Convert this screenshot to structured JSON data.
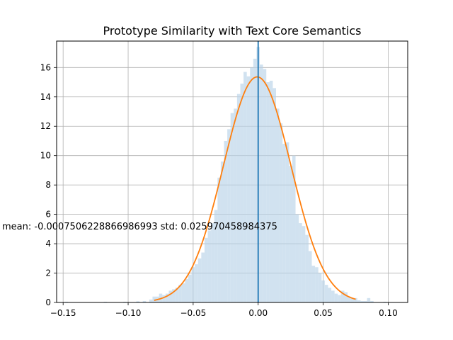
{
  "chart_data": {
    "type": "bar",
    "title": "Prototype Similarity with Text Core Semantics",
    "xlabel": "",
    "ylabel": "",
    "xlim": [
      -0.155,
      0.115
    ],
    "ylim": [
      0,
      17.8
    ],
    "grid": true,
    "x_ticks": [
      -0.15,
      -0.1,
      -0.05,
      0.0,
      0.05,
      0.1
    ],
    "x_tick_labels": [
      "−0.15",
      "−0.10",
      "−0.05",
      "0.00",
      "0.05",
      "0.10"
    ],
    "y_ticks": [
      0,
      2,
      4,
      6,
      8,
      10,
      12,
      14,
      16
    ],
    "y_tick_labels": [
      "0",
      "2",
      "4",
      "6",
      "8",
      "10",
      "12",
      "14",
      "16"
    ],
    "bar_color": "#b9d3e8",
    "fit_color": "#ff7f0e",
    "vline_color": "#1f77b4",
    "mean_line_x": 0.0,
    "fit_curve": {
      "mean": -0.00075,
      "std": 0.02597,
      "x_range": [
        -0.08,
        0.075
      ]
    },
    "annotation": "mean: -0.0007506228866986993 std: 0.025970458984375",
    "annotation_position": {
      "x": -0.101,
      "y": 5.15
    },
    "histogram": {
      "bin_width": 0.0025,
      "bins": [
        {
          "x": -0.1475,
          "y": 0.05
        },
        {
          "x": -0.1175,
          "y": 0.05
        },
        {
          "x": -0.1025,
          "y": 0.05
        },
        {
          "x": -0.0925,
          "y": 0.08
        },
        {
          "x": -0.0875,
          "y": 0.1
        },
        {
          "x": -0.0825,
          "y": 0.2
        },
        {
          "x": -0.08,
          "y": 0.4
        },
        {
          "x": -0.0775,
          "y": 0.4
        },
        {
          "x": -0.075,
          "y": 0.6
        },
        {
          "x": -0.0725,
          "y": 0.5
        },
        {
          "x": -0.07,
          "y": 0.6
        },
        {
          "x": -0.0675,
          "y": 0.8
        },
        {
          "x": -0.065,
          "y": 0.9
        },
        {
          "x": -0.0625,
          "y": 1.0
        },
        {
          "x": -0.06,
          "y": 1.2
        },
        {
          "x": -0.0575,
          "y": 1.3
        },
        {
          "x": -0.055,
          "y": 1.6
        },
        {
          "x": -0.0525,
          "y": 1.9
        },
        {
          "x": -0.05,
          "y": 2.4
        },
        {
          "x": -0.0475,
          "y": 2.6
        },
        {
          "x": -0.045,
          "y": 3.0
        },
        {
          "x": -0.0425,
          "y": 3.4
        },
        {
          "x": -0.04,
          "y": 4.4
        },
        {
          "x": -0.0375,
          "y": 4.9
        },
        {
          "x": -0.035,
          "y": 5.4
        },
        {
          "x": -0.0325,
          "y": 6.3
        },
        {
          "x": -0.03,
          "y": 8.5
        },
        {
          "x": -0.0275,
          "y": 9.6
        },
        {
          "x": -0.025,
          "y": 11.0
        },
        {
          "x": -0.0225,
          "y": 11.8
        },
        {
          "x": -0.02,
          "y": 12.9
        },
        {
          "x": -0.0175,
          "y": 13.2
        },
        {
          "x": -0.015,
          "y": 14.2
        },
        {
          "x": -0.0125,
          "y": 14.9
        },
        {
          "x": -0.01,
          "y": 15.7
        },
        {
          "x": -0.0075,
          "y": 15.4
        },
        {
          "x": -0.005,
          "y": 16.0
        },
        {
          "x": -0.0025,
          "y": 16.6
        },
        {
          "x": 0.0,
          "y": 17.4
        },
        {
          "x": 0.0025,
          "y": 16.2
        },
        {
          "x": 0.005,
          "y": 15.9
        },
        {
          "x": 0.0075,
          "y": 15.0
        },
        {
          "x": 0.01,
          "y": 15.1
        },
        {
          "x": 0.0125,
          "y": 14.6
        },
        {
          "x": 0.015,
          "y": 13.2
        },
        {
          "x": 0.0175,
          "y": 12.2
        },
        {
          "x": 0.02,
          "y": 10.8
        },
        {
          "x": 0.0225,
          "y": 10.9
        },
        {
          "x": 0.025,
          "y": 9.3
        },
        {
          "x": 0.0275,
          "y": 10.0
        },
        {
          "x": 0.03,
          "y": 6.0
        },
        {
          "x": 0.0325,
          "y": 5.4
        },
        {
          "x": 0.035,
          "y": 5.2
        },
        {
          "x": 0.0375,
          "y": 4.6
        },
        {
          "x": 0.04,
          "y": 3.5
        },
        {
          "x": 0.0425,
          "y": 2.5
        },
        {
          "x": 0.045,
          "y": 2.4
        },
        {
          "x": 0.0475,
          "y": 2.0
        },
        {
          "x": 0.05,
          "y": 1.5
        },
        {
          "x": 0.0525,
          "y": 1.2
        },
        {
          "x": 0.055,
          "y": 1.0
        },
        {
          "x": 0.0575,
          "y": 0.8
        },
        {
          "x": 0.06,
          "y": 0.6
        },
        {
          "x": 0.0625,
          "y": 0.5
        },
        {
          "x": 0.065,
          "y": 0.8
        },
        {
          "x": 0.0675,
          "y": 0.7
        },
        {
          "x": 0.07,
          "y": 0.4
        },
        {
          "x": 0.0725,
          "y": 0.3
        },
        {
          "x": 0.075,
          "y": 0.3
        },
        {
          "x": 0.0775,
          "y": 0.15
        },
        {
          "x": 0.08,
          "y": 0.1
        },
        {
          "x": 0.0825,
          "y": 0.1
        },
        {
          "x": 0.085,
          "y": 0.3
        },
        {
          "x": 0.0875,
          "y": 0.1
        },
        {
          "x": 0.0975,
          "y": 0.05
        }
      ]
    }
  }
}
